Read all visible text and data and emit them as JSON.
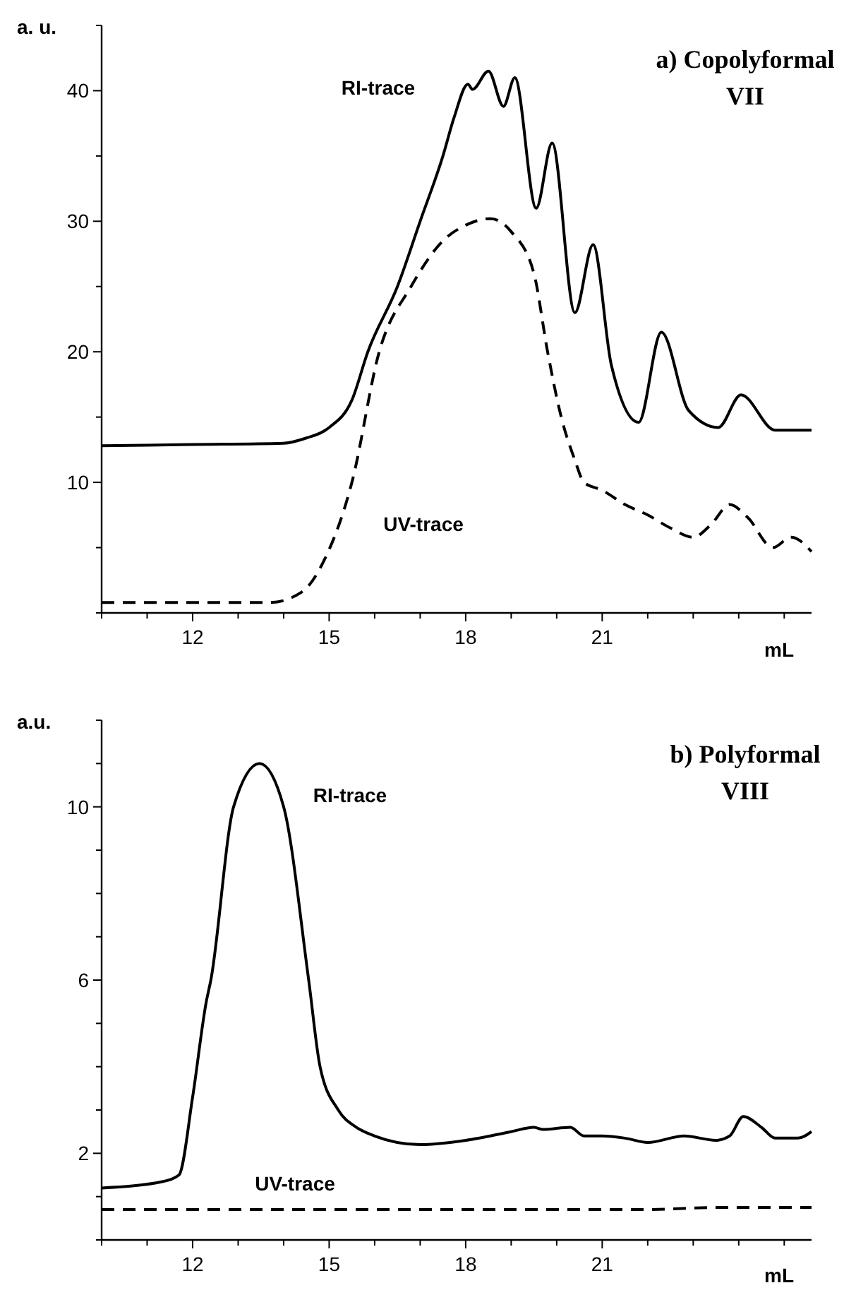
{
  "chart_data": [
    {
      "type": "line",
      "title": "a) Copolyformal VII",
      "xlabel": "mL",
      "ylabel": "a. u.",
      "xlim": [
        10,
        25.6
      ],
      "xticks": [
        {
          "value": 10,
          "label": null
        },
        {
          "value": 11,
          "label": null
        },
        12,
        {
          "value": 13,
          "label": null
        },
        {
          "value": 14,
          "label": null
        },
        15,
        {
          "value": 16,
          "label": null
        },
        {
          "value": 17,
          "label": null
        },
        18,
        {
          "value": 19,
          "label": null
        },
        {
          "value": 20,
          "label": null
        },
        21,
        {
          "value": 22,
          "label": null
        },
        {
          "value": 23,
          "label": null
        },
        {
          "value": 24,
          "label": null
        },
        {
          "value": 25,
          "label": null
        }
      ],
      "ylim": [
        0,
        45
      ],
      "yticks": [
        {
          "value": 0,
          "label": null
        },
        {
          "value": 5,
          "label": null
        },
        10,
        {
          "value": 15,
          "label": null
        },
        20,
        {
          "value": 25,
          "label": null
        },
        30,
        {
          "value": 35,
          "label": null
        },
        40,
        {
          "value": 45,
          "label": null
        }
      ],
      "series": [
        {
          "name": "RI-trace",
          "color": "#000000",
          "line_style": "solid",
          "x": [
            10,
            12,
            14,
            14.5,
            15,
            15.5,
            15.85,
            16.5,
            17,
            17.5,
            17.75,
            18.05,
            18.15,
            18.5,
            18.83,
            19.08,
            19.55,
            19.9,
            20.4,
            20.8,
            21.2,
            21.8,
            22.3,
            22.9,
            23.55,
            24.05,
            24.8,
            25.6
          ],
          "values": [
            12.8,
            12.9,
            13,
            13.4,
            14.2,
            16.3,
            20,
            25,
            30,
            35,
            38,
            40.5,
            40.1,
            41.5,
            38.8,
            41,
            31,
            36,
            23,
            28.2,
            19,
            14.6,
            21.5,
            15.5,
            14.2,
            16.7,
            14,
            14
          ]
        },
        {
          "name": "UV-trace",
          "color": "#000000",
          "line_style": "dashed",
          "x": [
            10,
            12,
            13.7,
            14.4,
            14.9,
            15.5,
            16.1,
            16.8,
            17.5,
            18,
            18.55,
            19,
            19.5,
            19.8,
            20.1,
            20.4,
            20.6,
            21,
            21.5,
            22,
            22.5,
            23,
            23.4,
            23.8,
            24.2,
            24.75,
            25.15,
            25.6
          ],
          "values": [
            0.8,
            0.8,
            0.8,
            1.6,
            4.1,
            10,
            20,
            25,
            28.5,
            29.7,
            30.2,
            29.2,
            26,
            20,
            15,
            11.7,
            10,
            9.4,
            8.3,
            7.5,
            6.5,
            5.8,
            6.8,
            8.3,
            7.3,
            5,
            5.8,
            4.7
          ]
        }
      ],
      "legend": false
    },
    {
      "type": "line",
      "title": "b) Polyformal VIII",
      "xlabel": "mL",
      "ylabel": "a.u.",
      "xlim": [
        10,
        25.6
      ],
      "xticks": [
        {
          "value": 10,
          "label": null
        },
        {
          "value": 11,
          "label": null
        },
        12,
        {
          "value": 13,
          "label": null
        },
        {
          "value": 14,
          "label": null
        },
        15,
        {
          "value": 16,
          "label": null
        },
        {
          "value": 17,
          "label": null
        },
        18,
        {
          "value": 19,
          "label": null
        },
        {
          "value": 20,
          "label": null
        },
        21,
        {
          "value": 22,
          "label": null
        },
        {
          "value": 23,
          "label": null
        },
        {
          "value": 24,
          "label": null
        },
        {
          "value": 25,
          "label": null
        }
      ],
      "ylim": [
        0,
        12
      ],
      "yticks": [
        {
          "value": 0,
          "label": null
        },
        {
          "value": 1,
          "label": null
        },
        2,
        {
          "value": 3,
          "label": null
        },
        {
          "value": 4,
          "label": null
        },
        {
          "value": 5,
          "label": null
        },
        6,
        {
          "value": 7,
          "label": null
        },
        {
          "value": 8,
          "label": null
        },
        {
          "value": 9,
          "label": null
        },
        10,
        {
          "value": 11,
          "label": null
        },
        {
          "value": 12,
          "label": null
        }
      ],
      "series": [
        {
          "name": "RI-trace",
          "color": "#000000",
          "line_style": "solid",
          "x": [
            10,
            11.35,
            11.7,
            12,
            12.3,
            12.4,
            12.9,
            13.47,
            14,
            14.55,
            14.8,
            15.2,
            15.6,
            16,
            17,
            18,
            19,
            19.5,
            19.7,
            20.3,
            20.6,
            21,
            21.5,
            22,
            22.8,
            23.5,
            23.8,
            24.1,
            24.5,
            24.8,
            25.3,
            25.6
          ],
          "values": [
            1.2,
            1.35,
            1.5,
            3.3,
            5.5,
            6,
            10,
            11,
            10,
            6,
            4,
            3,
            2.6,
            2.4,
            2.2,
            2.3,
            2.5,
            2.6,
            2.55,
            2.6,
            2.4,
            2.4,
            2.35,
            2.25,
            2.4,
            2.3,
            2.4,
            2.85,
            2.6,
            2.35,
            2.35,
            2.5
          ]
        },
        {
          "name": "UV-trace",
          "color": "#000000",
          "line_style": "dashed",
          "x": [
            10,
            14,
            18,
            22,
            23.5,
            25.6
          ],
          "values": [
            0.7,
            0.7,
            0.7,
            0.7,
            0.75,
            0.75
          ]
        }
      ],
      "legend": false
    }
  ]
}
